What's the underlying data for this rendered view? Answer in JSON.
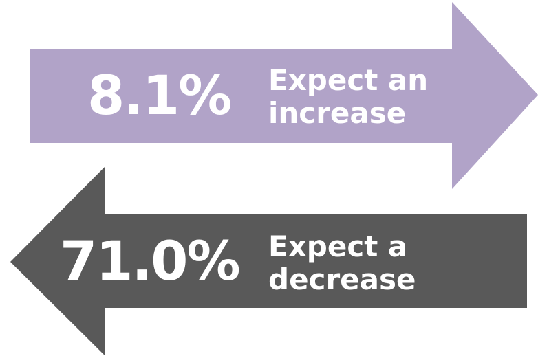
{
  "increase": {
    "percent": "8.1%",
    "label_line1": "Expect an",
    "label_line2": "increase",
    "color": "#b1a3c8"
  },
  "decrease": {
    "percent": "71.0%",
    "label_line1": "Expect a",
    "label_line2": "decrease",
    "color": "#595959"
  }
}
